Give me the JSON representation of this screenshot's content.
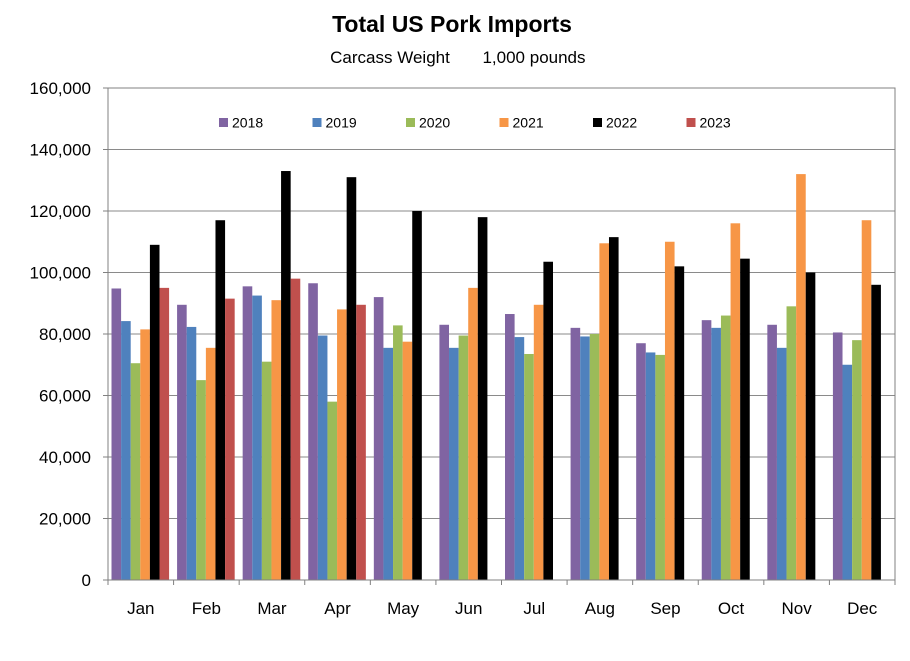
{
  "chart_data": {
    "type": "bar",
    "title": "Total US Pork Imports",
    "subtitle_left": "Carcass  Weight",
    "subtitle_right": "1,000 pounds",
    "categories": [
      "Jan",
      "Feb",
      "Mar",
      "Apr",
      "May",
      "Jun",
      "Jul",
      "Aug",
      "Sep",
      "Oct",
      "Nov",
      "Dec"
    ],
    "y_ticks": [
      "0",
      "20,000",
      "40,000",
      "60,000",
      "80,000",
      "100,000",
      "120,000",
      "140,000",
      "160,000"
    ],
    "ylim": [
      0,
      160000
    ],
    "grid": true,
    "legend_position": "top-inside",
    "series": [
      {
        "name": "2018",
        "color": "#8064A2",
        "values": [
          94800,
          89500,
          95500,
          96500,
          92000,
          83000,
          86500,
          82000,
          77000,
          84500,
          83000,
          80500
        ]
      },
      {
        "name": "2019",
        "color": "#4F81BD",
        "values": [
          84200,
          82300,
          92500,
          79500,
          75500,
          75500,
          79000,
          79200,
          74000,
          82000,
          75500,
          70000
        ]
      },
      {
        "name": "2020",
        "color": "#9BBB59",
        "values": [
          70500,
          65000,
          71000,
          58000,
          82800,
          79500,
          73500,
          80000,
          73200,
          86000,
          89000,
          78000
        ]
      },
      {
        "name": "2021",
        "color": "#F79646",
        "values": [
          81500,
          75500,
          91000,
          88000,
          77500,
          95000,
          89500,
          109500,
          110000,
          116000,
          132000,
          117000
        ]
      },
      {
        "name": "2022",
        "color": "#000000",
        "values": [
          109000,
          117000,
          133000,
          131000,
          120000,
          118000,
          103500,
          111500,
          102000,
          104500,
          100000,
          96000
        ]
      },
      {
        "name": "2023",
        "color": "#C0504D",
        "values": [
          95000,
          91500,
          98000,
          89500,
          null,
          null,
          null,
          null,
          null,
          null,
          null,
          null
        ]
      }
    ]
  }
}
